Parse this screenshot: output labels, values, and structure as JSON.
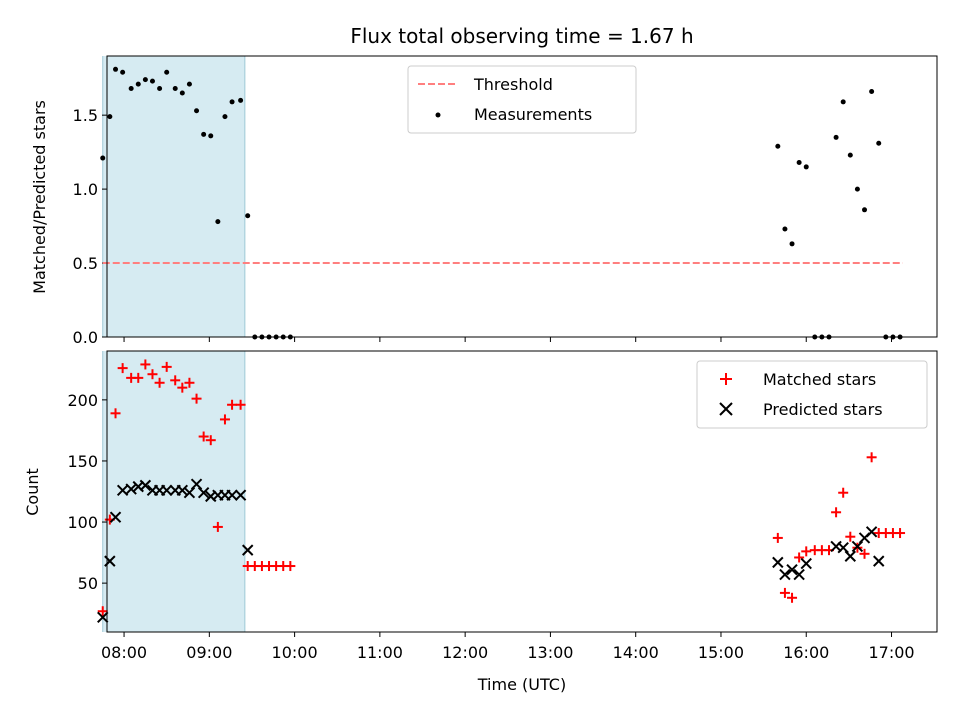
{
  "title": "Flux total observing time = 1.67 h",
  "chart_data": [
    {
      "type": "scatter",
      "ylabel": "Matched/Predicted stars",
      "xlim": [
        "07:48",
        "17:32"
      ],
      "ylim": [
        0,
        1.9
      ],
      "yticks": [
        0.0,
        0.5,
        1.0,
        1.5
      ],
      "ytick_labels": [
        "0.0",
        "0.5",
        "1.0",
        "1.5"
      ],
      "shaded_interval": [
        "07:45",
        "09:25"
      ],
      "legend": {
        "placement": "top-center",
        "entries": [
          "Threshold",
          "Measurements"
        ]
      },
      "threshold": {
        "name": "Threshold",
        "value": 0.5,
        "x": [
          "07:45",
          "17:08"
        ],
        "color": "#ff7f7f"
      },
      "series": [
        {
          "name": "Measurements",
          "color": "#000000",
          "x": [
            "07:45",
            "07:50",
            "07:54",
            "07:59",
            "08:05",
            "08:10",
            "08:15",
            "08:20",
            "08:25",
            "08:30",
            "08:36",
            "08:41",
            "08:46",
            "08:51",
            "08:56",
            "09:01",
            "09:06",
            "09:11",
            "09:16",
            "09:22",
            "09:27",
            "09:32",
            "09:37",
            "09:42",
            "09:47",
            "09:52",
            "09:57",
            "15:40",
            "15:45",
            "15:50",
            "15:55",
            "16:00",
            "16:06",
            "16:11",
            "16:16",
            "16:21",
            "16:26",
            "16:31",
            "16:36",
            "16:41",
            "16:46",
            "16:51",
            "16:56",
            "17:01",
            "17:06"
          ],
          "y": [
            1.21,
            1.49,
            1.81,
            1.79,
            1.68,
            1.71,
            1.74,
            1.73,
            1.68,
            1.79,
            1.68,
            1.65,
            1.71,
            1.53,
            1.37,
            1.36,
            0.78,
            1.49,
            1.59,
            1.6,
            0.82,
            0,
            0,
            0,
            0,
            0,
            0,
            1.29,
            0.73,
            0.63,
            1.18,
            1.15,
            0,
            0,
            0,
            1.35,
            1.59,
            1.23,
            1.0,
            0.86,
            1.66,
            1.31,
            0,
            0,
            0
          ]
        }
      ]
    },
    {
      "type": "scatter",
      "xlabel": "Time (UTC)",
      "ylabel": "Count",
      "xlim": [
        "07:48",
        "17:32"
      ],
      "ylim": [
        10,
        240
      ],
      "yticks": [
        50,
        100,
        150,
        200
      ],
      "xticks": [
        "08:00",
        "09:00",
        "10:00",
        "11:00",
        "12:00",
        "13:00",
        "14:00",
        "15:00",
        "16:00",
        "17:00"
      ],
      "shaded_interval": [
        "07:45",
        "09:25"
      ],
      "legend": {
        "placement": "top-right",
        "entries": [
          "Matched stars",
          "Predicted stars"
        ]
      },
      "series": [
        {
          "name": "Matched stars",
          "marker": "plus",
          "color": "#ff0000",
          "x": [
            "07:45",
            "07:50",
            "07:54",
            "07:59",
            "08:05",
            "08:10",
            "08:15",
            "08:20",
            "08:25",
            "08:30",
            "08:36",
            "08:41",
            "08:46",
            "08:51",
            "08:56",
            "09:01",
            "09:06",
            "09:11",
            "09:16",
            "09:22",
            "09:27",
            "09:32",
            "09:37",
            "09:42",
            "09:47",
            "09:52",
            "09:57",
            "15:40",
            "15:45",
            "15:50",
            "15:55",
            "16:00",
            "16:06",
            "16:11",
            "16:16",
            "16:21",
            "16:26",
            "16:31",
            "16:36",
            "16:41",
            "16:46",
            "16:51",
            "16:56",
            "17:01",
            "17:06"
          ],
          "y": [
            27,
            102,
            189,
            226,
            218,
            218,
            229,
            221,
            214,
            227,
            216,
            210,
            214,
            201,
            170,
            167,
            96,
            184,
            196,
            196,
            64,
            64,
            64,
            64,
            64,
            64,
            64,
            87,
            42,
            38,
            71,
            76,
            77,
            77,
            77,
            108,
            124,
            88,
            79,
            74,
            153,
            91,
            91,
            91,
            91
          ]
        },
        {
          "name": "Predicted stars",
          "marker": "x",
          "color": "#000000",
          "x": [
            "07:45",
            "07:50",
            "07:54",
            "07:59",
            "08:05",
            "08:10",
            "08:15",
            "08:20",
            "08:25",
            "08:30",
            "08:36",
            "08:41",
            "08:46",
            "08:51",
            "08:56",
            "09:01",
            "09:06",
            "09:11",
            "09:16",
            "09:22",
            "09:27",
            "15:40",
            "15:45",
            "15:50",
            "15:55",
            "16:00",
            "16:21",
            "16:26",
            "16:31",
            "16:36",
            "16:41",
            "16:46",
            "16:51"
          ],
          "y": [
            22,
            68,
            104,
            126,
            127,
            129,
            130,
            126,
            126,
            126,
            126,
            126,
            124,
            131,
            124,
            121,
            122,
            122,
            122,
            122,
            77,
            67,
            57,
            61,
            57,
            66,
            80,
            79,
            72,
            80,
            87,
            92,
            68
          ]
        }
      ]
    }
  ]
}
